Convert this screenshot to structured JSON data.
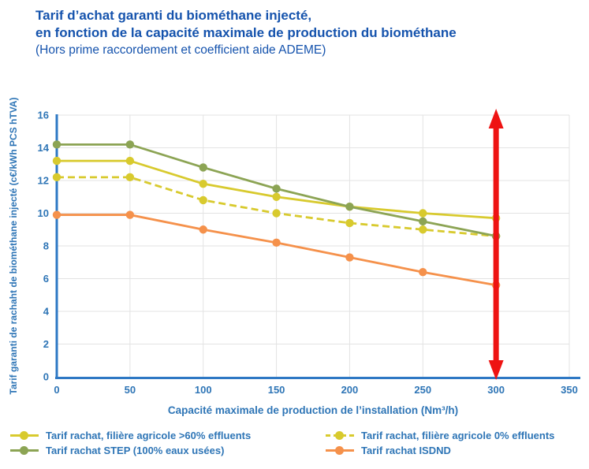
{
  "title": {
    "line1": "Tarif d’achat garanti du biométhane injecté,",
    "line2": "en fonction de la capacité maximale de production du biométhane",
    "line3": "(Hors prime raccordement et coefficient aide ADEME)"
  },
  "colors": {
    "title_text": "#1553AD",
    "axis_text": "#2E75B6",
    "axis_line": "#2E78C4",
    "gridline": "#E3E3E3",
    "arrow_red": "#EE1312"
  },
  "chart_data": {
    "type": "line",
    "title": "Tarif d’achat garanti du biométhane injecté, en fonction de la capacité maximale de production du biométhane (Hors prime raccordement et coefficient aide ADEME)",
    "x": [
      0,
      50,
      100,
      150,
      200,
      250,
      300
    ],
    "series": [
      {
        "name": "Tarif rachat, filière agricole >60% effluents",
        "color": "#D8CA2E",
        "style": "solid",
        "values": [
          13.2,
          13.2,
          11.8,
          11.0,
          10.4,
          10.0,
          9.7
        ]
      },
      {
        "name": "Tarif rachat, filière agricole 0% effluents",
        "color": "#D8CA2E",
        "style": "dashed",
        "values": [
          12.2,
          12.2,
          10.8,
          10.0,
          9.4,
          9.0,
          8.6
        ]
      },
      {
        "name": "Tarif rachat STEP (100% eaux usées)",
        "color": "#8CA454",
        "style": "solid",
        "values": [
          14.2,
          14.2,
          12.8,
          11.5,
          10.4,
          9.5,
          8.6
        ]
      },
      {
        "name": "Tarif rachat ISDND",
        "color": "#F5914B",
        "style": "solid",
        "values": [
          9.9,
          9.9,
          9.0,
          8.2,
          7.3,
          6.4,
          5.6
        ]
      }
    ],
    "xlabel": "Capacité maximale de production de l’installation (Nm³/h)",
    "ylabel": "Tarif garanti de rachaht de biométhane injecté (c€/kWh PCS hTVA)",
    "xlim": [
      0,
      350
    ],
    "ylim": [
      0,
      16
    ],
    "x_ticks": [
      0,
      50,
      100,
      150,
      200,
      250,
      300,
      350
    ],
    "y_ticks": [
      0,
      2,
      4,
      6,
      8,
      10,
      12,
      14,
      16
    ],
    "grid": true,
    "legend_position": "bottom",
    "annotation": {
      "type": "vertical-double-arrow",
      "x": 300,
      "from_y": 0,
      "to_y": 16
    }
  },
  "legend": {
    "items": [
      {
        "series_index": 0
      },
      {
        "series_index": 1
      },
      {
        "series_index": 2
      },
      {
        "series_index": 3
      }
    ]
  }
}
